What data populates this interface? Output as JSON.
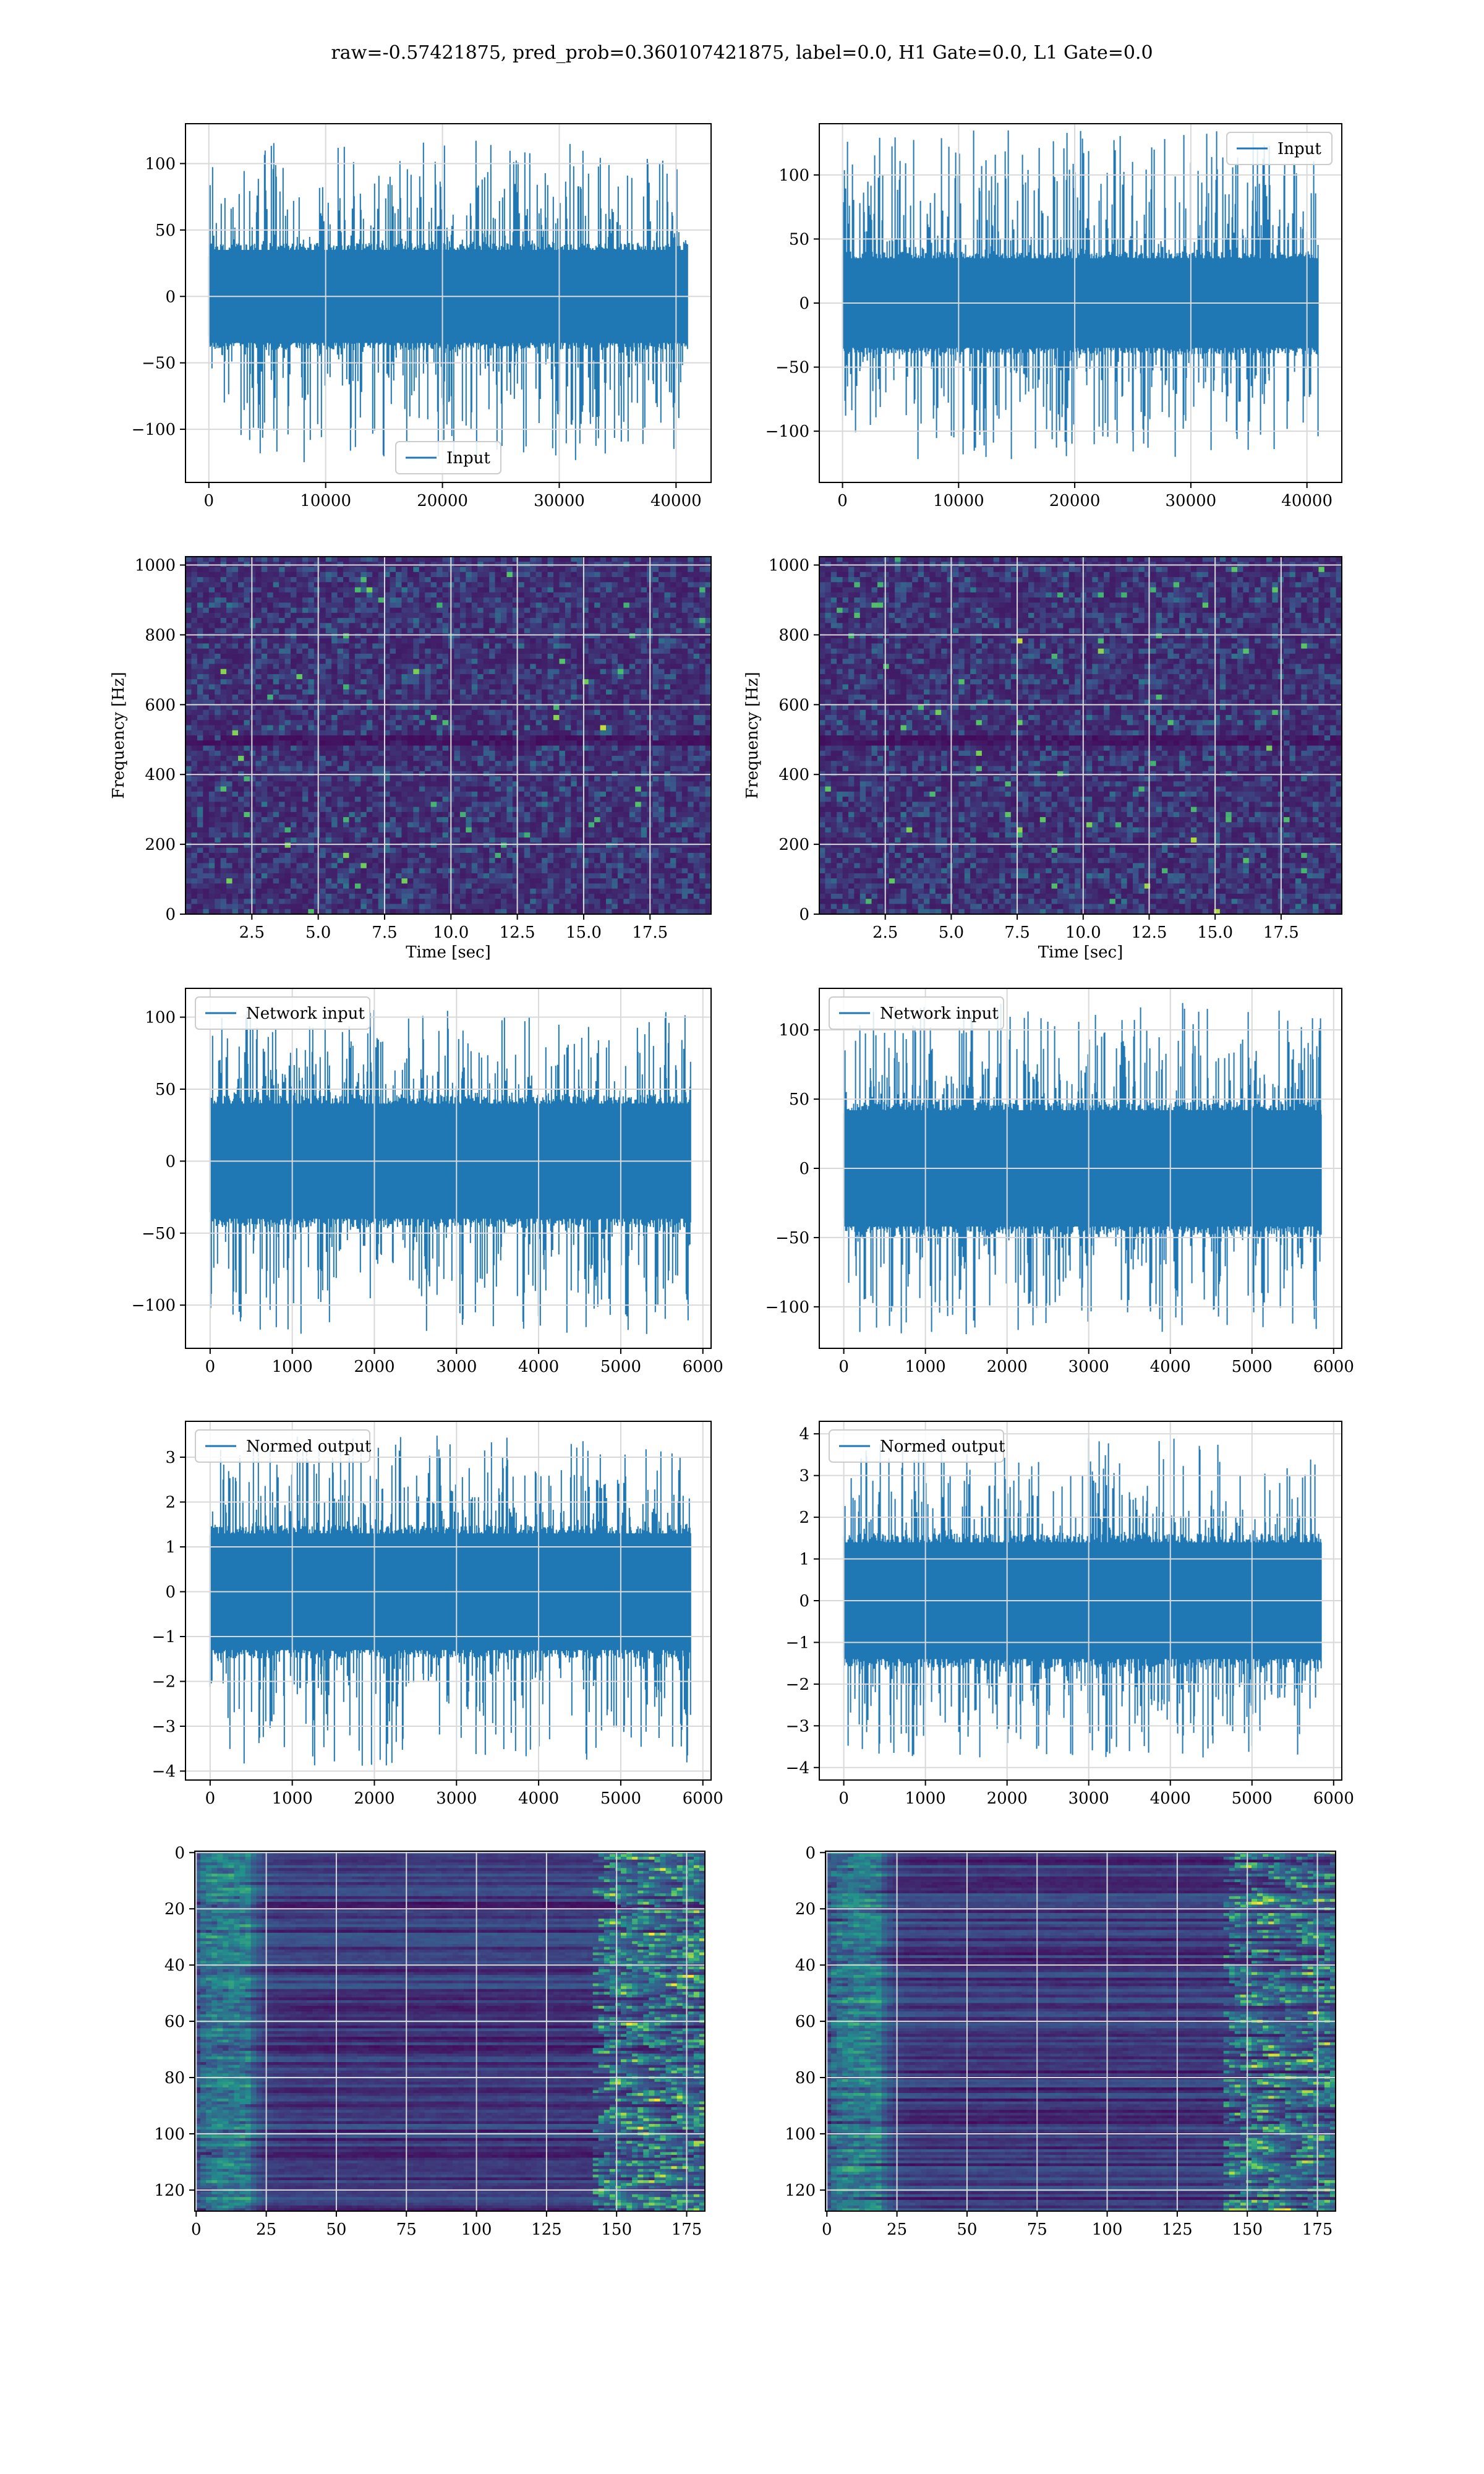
{
  "figure": {
    "suptitle": "raw=-0.57421875, pred_prob=0.360107421875, label=0.0, H1 Gate=0.0, L1 Gate=0.0",
    "colors": {
      "series": "#1f77b4",
      "grid": "#d9d9d9",
      "viridis_dark": "#440154",
      "viridis_mid": "#3b528b",
      "viridis_teal": "#21918c",
      "viridis_green": "#5ec962",
      "viridis_yellow": "#fde725"
    }
  },
  "chart_data": [
    {
      "id": "r0c0",
      "type": "line",
      "legend": [
        "Input"
      ],
      "legend_loc": "lower-center",
      "xlim": [
        -2000,
        43000
      ],
      "ylim": [
        -140,
        130
      ],
      "xticks": [
        0,
        10000,
        20000,
        30000,
        40000
      ],
      "yticks": [
        -100,
        -50,
        0,
        50,
        100
      ],
      "xticklabels": [
        "0",
        "10000",
        "20000",
        "30000",
        "40000"
      ],
      "yticklabels": [
        "−100",
        "−50",
        "0",
        "50",
        "100"
      ],
      "signal": {
        "x_start": 0,
        "x_end": 40960,
        "core": 35,
        "spike_max": 118,
        "spike_min": -125
      },
      "xlabel": "",
      "ylabel": "",
      "grid": true
    },
    {
      "id": "r0c1",
      "type": "line",
      "legend": [
        "Input"
      ],
      "legend_loc": "upper-right",
      "xlim": [
        -2000,
        43000
      ],
      "ylim": [
        -140,
        140
      ],
      "xticks": [
        0,
        10000,
        20000,
        30000,
        40000
      ],
      "yticks": [
        -100,
        -50,
        0,
        50,
        100
      ],
      "xticklabels": [
        "0",
        "10000",
        "20000",
        "30000",
        "40000"
      ],
      "yticklabels": [
        "−100",
        "−50",
        "0",
        "50",
        "100"
      ],
      "signal": {
        "x_start": 0,
        "x_end": 40960,
        "core": 35,
        "spike_max": 135,
        "spike_min": -122
      },
      "xlabel": "",
      "ylabel": "",
      "grid": true
    },
    {
      "id": "r1c0",
      "type": "heatmap",
      "xlim": [
        0,
        19.8
      ],
      "ylim": [
        0,
        1024
      ],
      "xticks": [
        2.5,
        5.0,
        7.5,
        10.0,
        12.5,
        15.0,
        17.5
      ],
      "yticks": [
        0,
        200,
        400,
        600,
        800,
        1000
      ],
      "xticklabels": [
        "2.5",
        "5.0",
        "7.5",
        "10.0",
        "12.5",
        "15.0",
        "17.5"
      ],
      "yticklabels": [
        "0",
        "200",
        "400",
        "600",
        "800",
        "1000"
      ],
      "xlabel": "Time [sec]",
      "ylabel": "Frequency [Hz]",
      "grid": true,
      "colormap": "viridis"
    },
    {
      "id": "r1c1",
      "type": "heatmap",
      "xlim": [
        0,
        19.8
      ],
      "ylim": [
        0,
        1024
      ],
      "xticks": [
        2.5,
        5.0,
        7.5,
        10.0,
        12.5,
        15.0,
        17.5
      ],
      "yticks": [
        0,
        200,
        400,
        600,
        800,
        1000
      ],
      "xticklabels": [
        "2.5",
        "5.0",
        "7.5",
        "10.0",
        "12.5",
        "15.0",
        "17.5"
      ],
      "yticklabels": [
        "0",
        "200",
        "400",
        "600",
        "800",
        "1000"
      ],
      "xlabel": "Time [sec]",
      "ylabel": "Frequency [Hz]",
      "grid": true,
      "colormap": "viridis"
    },
    {
      "id": "r2c0",
      "type": "line",
      "legend": [
        "Network input"
      ],
      "legend_loc": "upper-left",
      "xlim": [
        -300,
        6100
      ],
      "ylim": [
        -130,
        120
      ],
      "xticks": [
        0,
        1000,
        2000,
        3000,
        4000,
        5000,
        6000
      ],
      "yticks": [
        -100,
        -50,
        0,
        50,
        100
      ],
      "xticklabels": [
        "0",
        "1000",
        "2000",
        "3000",
        "4000",
        "5000",
        "6000"
      ],
      "yticklabels": [
        "−100",
        "−50",
        "0",
        "50",
        "100"
      ],
      "signal": {
        "x_start": 0,
        "x_end": 5850,
        "core": 40,
        "spike_max": 105,
        "spike_min": -120
      },
      "xlabel": "",
      "ylabel": "",
      "grid": true
    },
    {
      "id": "r2c1",
      "type": "line",
      "legend": [
        "Network input"
      ],
      "legend_loc": "upper-left",
      "xlim": [
        -300,
        6100
      ],
      "ylim": [
        -130,
        130
      ],
      "xticks": [
        0,
        1000,
        2000,
        3000,
        4000,
        5000,
        6000
      ],
      "yticks": [
        -100,
        -50,
        0,
        50,
        100
      ],
      "xticklabels": [
        "0",
        "1000",
        "2000",
        "3000",
        "4000",
        "5000",
        "6000"
      ],
      "yticklabels": [
        "−100",
        "−50",
        "0",
        "50",
        "100"
      ],
      "signal": {
        "x_start": 0,
        "x_end": 5850,
        "core": 42,
        "spike_max": 120,
        "spike_min": -120
      },
      "xlabel": "",
      "ylabel": "",
      "grid": true
    },
    {
      "id": "r3c0",
      "type": "line",
      "legend": [
        "Normed output"
      ],
      "legend_loc": "upper-left",
      "xlim": [
        -300,
        6100
      ],
      "ylim": [
        -4.2,
        3.8
      ],
      "xticks": [
        0,
        1000,
        2000,
        3000,
        4000,
        5000,
        6000
      ],
      "yticks": [
        -4,
        -3,
        -2,
        -1,
        0,
        1,
        2,
        3
      ],
      "xticklabels": [
        "0",
        "1000",
        "2000",
        "3000",
        "4000",
        "5000",
        "6000"
      ],
      "yticklabels": [
        "−4",
        "−3",
        "−2",
        "−1",
        "0",
        "1",
        "2",
        "3"
      ],
      "signal": {
        "x_start": 0,
        "x_end": 5850,
        "core": 1.3,
        "spike_max": 3.5,
        "spike_min": -3.9
      },
      "xlabel": "",
      "ylabel": "",
      "grid": true
    },
    {
      "id": "r3c1",
      "type": "line",
      "legend": [
        "Normed output"
      ],
      "legend_loc": "upper-left",
      "xlim": [
        -300,
        6100
      ],
      "ylim": [
        -4.3,
        4.3
      ],
      "xticks": [
        0,
        1000,
        2000,
        3000,
        4000,
        5000,
        6000
      ],
      "yticks": [
        -4,
        -3,
        -2,
        -1,
        0,
        1,
        2,
        3,
        4
      ],
      "xticklabels": [
        "0",
        "1000",
        "2000",
        "3000",
        "4000",
        "5000",
        "6000"
      ],
      "yticklabels": [
        "−4",
        "−3",
        "−2",
        "−1",
        "0",
        "1",
        "2",
        "3",
        "4"
      ],
      "signal": {
        "x_start": 0,
        "x_end": 5850,
        "core": 1.4,
        "spike_max": 3.9,
        "spike_min": -3.8
      },
      "xlabel": "",
      "ylabel": "",
      "grid": true
    },
    {
      "id": "r4c0",
      "type": "heatmap",
      "xlim": [
        -0.5,
        181.5
      ],
      "ylim": [
        127.5,
        -0.5
      ],
      "y_inverted": true,
      "xticks": [
        0,
        25,
        50,
        75,
        100,
        125,
        150,
        175
      ],
      "yticks": [
        0,
        20,
        40,
        60,
        80,
        100,
        120
      ],
      "xticklabels": [
        "0",
        "25",
        "50",
        "75",
        "100",
        "125",
        "150",
        "175"
      ],
      "yticklabels": [
        "0",
        "20",
        "40",
        "60",
        "80",
        "100",
        "120"
      ],
      "xlabel": "",
      "ylabel": "",
      "grid": true,
      "colormap": "viridis"
    },
    {
      "id": "r4c1",
      "type": "heatmap",
      "xlim": [
        -0.5,
        181.5
      ],
      "ylim": [
        127.5,
        -0.5
      ],
      "y_inverted": true,
      "xticks": [
        0,
        25,
        50,
        75,
        100,
        125,
        150,
        175
      ],
      "yticks": [
        0,
        20,
        40,
        60,
        80,
        100,
        120
      ],
      "xticklabels": [
        "0",
        "25",
        "50",
        "75",
        "100",
        "125",
        "150",
        "175"
      ],
      "yticklabels": [
        "0",
        "20",
        "40",
        "60",
        "80",
        "100",
        "120"
      ],
      "xlabel": "",
      "ylabel": "",
      "grid": true,
      "colormap": "viridis"
    }
  ]
}
